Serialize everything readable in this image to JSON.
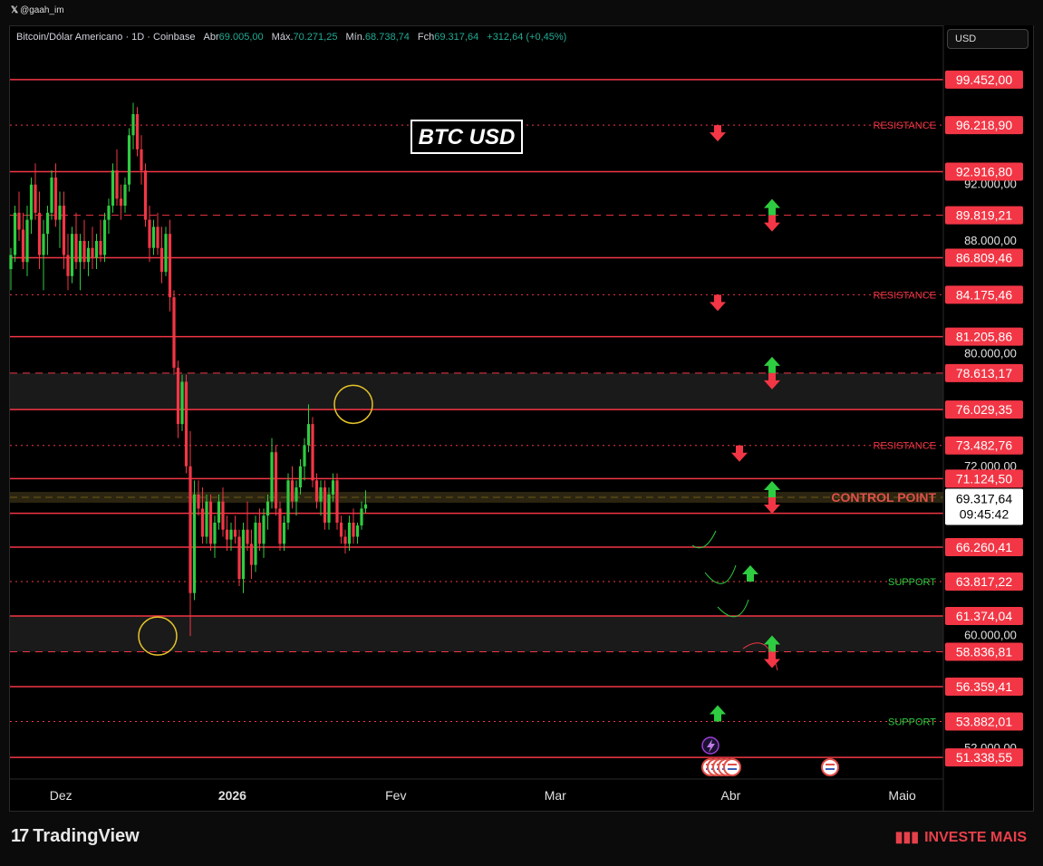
{
  "author": "@gaah_im",
  "legend": {
    "symbol": "Bitcoin/Dólar Americano · 1D · Coinbase",
    "open_label": "Abr",
    "open": "69.005,00",
    "high_label": "Máx.",
    "high": "70.271,25",
    "low_label": "Mín.",
    "low": "68.738,74",
    "close_label": "Fch",
    "close": "69.317,64",
    "change": "+312,64 (+0,45%)"
  },
  "currency_button": "USD",
  "title": "BTC USD",
  "footer": {
    "logo": "TradingView",
    "brand": "INVESTE MAIS"
  },
  "colors": {
    "up": "#2ecc40",
    "down": "#f23645",
    "level": "#f23645",
    "support": "#2ecc40",
    "control": "#8c7a1a"
  },
  "chart_data": {
    "type": "candlestick",
    "ylim": [
      49800,
      101500
    ],
    "x_ticks": [
      "Dez",
      "2026",
      "Fev",
      "Mar",
      "Abr",
      "Maio"
    ],
    "y_ticks": [
      "92.000,00",
      "88.000,00",
      "80.000,00",
      "72.000,00",
      "60.000,00",
      "52.000,00"
    ],
    "y_tick_values": [
      92000,
      88000,
      80000,
      72000,
      60000,
      52000
    ],
    "last_price": "69.317,64",
    "countdown": "09:45:42",
    "last_price_value": 69317.64,
    "levels": [
      {
        "price": 99452.0,
        "label": "99.452,00",
        "style": "solid",
        "tag": ""
      },
      {
        "price": 96218.9,
        "label": "96.218,90",
        "style": "dotted",
        "tag": "RESISTANCE"
      },
      {
        "price": 92916.8,
        "label": "92.916,80",
        "style": "solid",
        "tag": ""
      },
      {
        "price": 89819.21,
        "label": "89.819,21",
        "style": "dashed",
        "tag": ""
      },
      {
        "price": 86809.46,
        "label": "86.809,46",
        "style": "solid",
        "tag": ""
      },
      {
        "price": 84175.46,
        "label": "84.175,46",
        "style": "dotted",
        "tag": "RESISTANCE"
      },
      {
        "price": 81205.86,
        "label": "81.205,86",
        "style": "solid",
        "tag": ""
      },
      {
        "price": 78613.17,
        "label": "78.613,17",
        "style": "dashed",
        "tag": ""
      },
      {
        "price": 76029.35,
        "label": "76.029,35",
        "style": "solid",
        "tag": ""
      },
      {
        "price": 73482.76,
        "label": "73.482,76",
        "style": "dotted",
        "tag": "RESISTANCE"
      },
      {
        "price": 71124.5,
        "label": "71.124,50",
        "style": "solid",
        "tag": ""
      },
      {
        "price": 68664.18,
        "label": "68.664,18",
        "style": "solid",
        "tag": ""
      },
      {
        "price": 66260.41,
        "label": "66.260,41",
        "style": "solid",
        "tag": ""
      },
      {
        "price": 63817.22,
        "label": "63.817,22",
        "style": "dotted",
        "tag": "SUPPORT"
      },
      {
        "price": 61374.04,
        "label": "61.374,04",
        "style": "solid",
        "tag": ""
      },
      {
        "price": 58836.81,
        "label": "58.836,81",
        "style": "dashed",
        "tag": ""
      },
      {
        "price": 56359.41,
        "label": "56.359,41",
        "style": "solid",
        "tag": ""
      },
      {
        "price": 53882.01,
        "label": "53.882,01",
        "style": "dotted",
        "tag": "SUPPORT"
      },
      {
        "price": 51338.55,
        "label": "51.338,55",
        "style": "solid",
        "tag": ""
      }
    ],
    "control_point": {
      "price": 69800,
      "label": "CONTROL POINT"
    },
    "zones": [
      {
        "from": 76029.35,
        "to": 78613.17
      },
      {
        "from": 58836.81,
        "to": 61374.04
      }
    ],
    "arrows": [
      {
        "x": 130,
        "price": 96218.9,
        "dir": "down"
      },
      {
        "x": 140,
        "price": 89819.21,
        "dir": "both"
      },
      {
        "x": 130,
        "price": 84175.46,
        "dir": "down"
      },
      {
        "x": 140,
        "price": 78613.17,
        "dir": "both"
      },
      {
        "x": 134,
        "price": 73482.76,
        "dir": "down"
      },
      {
        "x": 140,
        "price": 69800,
        "dir": "both"
      },
      {
        "x": 136,
        "price": 63817.22,
        "dir": "up"
      },
      {
        "x": 140,
        "price": 58836.81,
        "dir": "both"
      },
      {
        "x": 130,
        "price": 53882.01,
        "dir": "up"
      }
    ],
    "circles": [
      {
        "x": 84,
        "price": 76400
      },
      {
        "x": 36,
        "price": 59950
      }
    ],
    "candles": [
      [
        0,
        86000,
        87500,
        84500,
        87000
      ],
      [
        1,
        87000,
        90500,
        86500,
        90000
      ],
      [
        2,
        90000,
        91500,
        88000,
        88800
      ],
      [
        3,
        88800,
        90000,
        86000,
        86500
      ],
      [
        4,
        86500,
        90500,
        85500,
        89500
      ],
      [
        5,
        89500,
        92500,
        88500,
        92000
      ],
      [
        6,
        92000,
        93500,
        89500,
        90000
      ],
      [
        7,
        90000,
        91500,
        86000,
        87000
      ],
      [
        8,
        87000,
        89500,
        84500,
        88500
      ],
      [
        9,
        88500,
        90500,
        87000,
        90000
      ],
      [
        10,
        90000,
        93000,
        89500,
        92500
      ],
      [
        11,
        92500,
        93500,
        89000,
        89500
      ],
      [
        12,
        89500,
        91500,
        87500,
        90500
      ],
      [
        13,
        90500,
        91500,
        86000,
        87000
      ],
      [
        14,
        87000,
        88500,
        84500,
        85500
      ],
      [
        15,
        85500,
        89000,
        85000,
        88500
      ],
      [
        16,
        88500,
        90000,
        86000,
        86500
      ],
      [
        17,
        86500,
        88500,
        84500,
        88000
      ],
      [
        18,
        88000,
        89500,
        86000,
        86500
      ],
      [
        19,
        86500,
        88000,
        85500,
        87500
      ],
      [
        20,
        87500,
        89000,
        86000,
        86800
      ],
      [
        21,
        86800,
        88500,
        86000,
        88000
      ],
      [
        22,
        88000,
        89500,
        86500,
        87000
      ],
      [
        23,
        87000,
        90000,
        86500,
        89500
      ],
      [
        24,
        89500,
        91000,
        88500,
        90500
      ],
      [
        25,
        90500,
        93500,
        90000,
        93000
      ],
      [
        26,
        93000,
        94500,
        90500,
        91000
      ],
      [
        27,
        91000,
        92000,
        89500,
        90500
      ],
      [
        28,
        90500,
        92500,
        90000,
        92000
      ],
      [
        29,
        92000,
        96000,
        91500,
        95500
      ],
      [
        30,
        95500,
        97800,
        94500,
        97000
      ],
      [
        31,
        97000,
        97500,
        94000,
        94500
      ],
      [
        32,
        94500,
        95500,
        92000,
        93000
      ],
      [
        33,
        93000,
        93500,
        89000,
        89500
      ],
      [
        34,
        89500,
        90500,
        86500,
        87500
      ],
      [
        35,
        87500,
        89500,
        87000,
        89000
      ],
      [
        36,
        89000,
        90000,
        87000,
        87500
      ],
      [
        37,
        87500,
        89000,
        85000,
        85800
      ],
      [
        38,
        85800,
        89000,
        85500,
        88500
      ],
      [
        39,
        88500,
        89500,
        83000,
        84000
      ],
      [
        40,
        84000,
        84500,
        78500,
        79000
      ],
      [
        41,
        79000,
        79500,
        74000,
        75000
      ],
      [
        42,
        75000,
        78500,
        74500,
        78000
      ],
      [
        43,
        78000,
        78500,
        71500,
        72000
      ],
      [
        44,
        72000,
        74500,
        59950,
        63000
      ],
      [
        45,
        63000,
        71000,
        62500,
        70000
      ],
      [
        46,
        70000,
        71000,
        68500,
        69000
      ],
      [
        47,
        69000,
        70500,
        66500,
        67000
      ],
      [
        48,
        67000,
        70000,
        66500,
        69500
      ],
      [
        49,
        69500,
        70000,
        66000,
        66500
      ],
      [
        50,
        66500,
        68500,
        65500,
        68000
      ],
      [
        51,
        68000,
        70000,
        67500,
        69500
      ],
      [
        52,
        69500,
        70500,
        67000,
        67500
      ],
      [
        53,
        67500,
        68500,
        66000,
        66800
      ],
      [
        54,
        66800,
        68000,
        66000,
        67500
      ],
      [
        55,
        67500,
        68500,
        66500,
        67000
      ],
      [
        56,
        67000,
        67500,
        63500,
        64000
      ],
      [
        57,
        64000,
        68000,
        63000,
        67500
      ],
      [
        58,
        67500,
        69500,
        66000,
        66500
      ],
      [
        59,
        66500,
        67500,
        64000,
        65000
      ],
      [
        60,
        65000,
        68500,
        64500,
        68000
      ],
      [
        61,
        68000,
        69000,
        66000,
        66500
      ],
      [
        62,
        66500,
        69000,
        65500,
        68500
      ],
      [
        63,
        68500,
        70000,
        67500,
        69500
      ],
      [
        64,
        69500,
        74000,
        69000,
        73000
      ],
      [
        65,
        73000,
        73500,
        68500,
        69000
      ],
      [
        66,
        69000,
        69500,
        66000,
        66500
      ],
      [
        67,
        66500,
        68500,
        66000,
        68000
      ],
      [
        68,
        68000,
        71500,
        67500,
        71000
      ],
      [
        69,
        71000,
        72000,
        69000,
        69500
      ],
      [
        70,
        69500,
        71000,
        68500,
        70500
      ],
      [
        71,
        70500,
        72500,
        70000,
        72000
      ],
      [
        72,
        72000,
        74000,
        71000,
        73500
      ],
      [
        73,
        73500,
        76400,
        73000,
        75000
      ],
      [
        74,
        75000,
        75500,
        70500,
        71000
      ],
      [
        75,
        71000,
        71500,
        69000,
        69500
      ],
      [
        76,
        69500,
        71000,
        68500,
        70500
      ],
      [
        77,
        70500,
        71000,
        67500,
        68000
      ],
      [
        78,
        68000,
        70500,
        67500,
        70000
      ],
      [
        79,
        70000,
        71500,
        69500,
        71000
      ],
      [
        80,
        71000,
        71500,
        67500,
        68000
      ],
      [
        81,
        68000,
        68500,
        66500,
        67000
      ],
      [
        82,
        67000,
        67500,
        65800,
        66500
      ],
      [
        83,
        66500,
        68500,
        66000,
        68000
      ],
      [
        84,
        68000,
        69000,
        66500,
        67000
      ],
      [
        85,
        67000,
        68000,
        66500,
        67800
      ],
      [
        86,
        67800,
        69500,
        67500,
        69000
      ],
      [
        87,
        69000,
        70300,
        68700,
        69300
      ]
    ],
    "x_tick_index": [
      8,
      51,
      92,
      132,
      176,
      219
    ]
  }
}
